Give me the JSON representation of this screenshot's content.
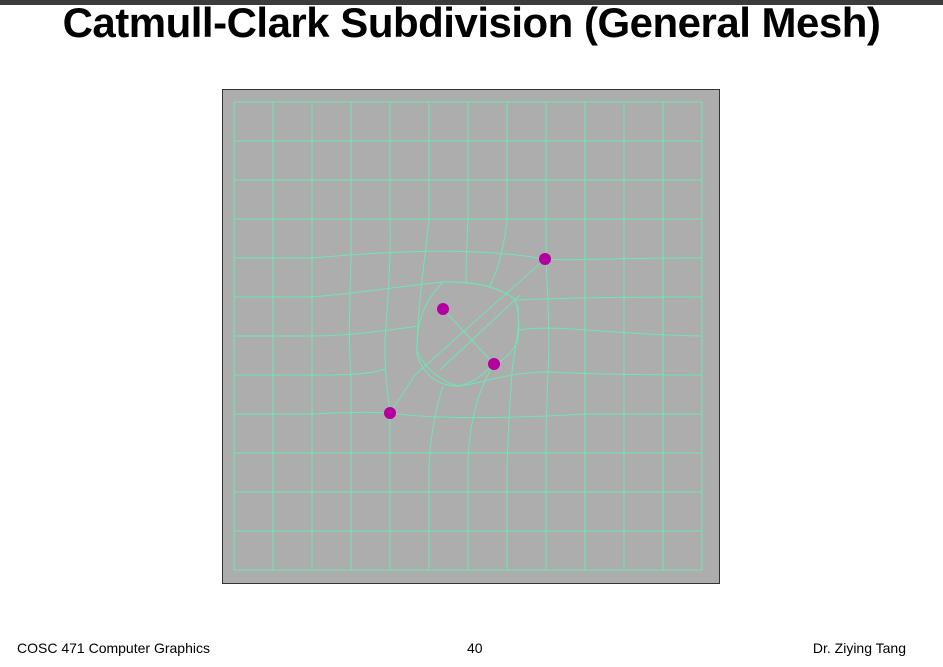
{
  "slide": {
    "title": "Catmull-Clark Subdivision (General Mesh)"
  },
  "footer": {
    "course": "COSC 471 Computer Graphics",
    "page_number": "40",
    "author": "Dr. Ziying Tang"
  },
  "figure": {
    "background_color": "#adadad",
    "line_color": "#6ee6b4",
    "point_color": "#b3009f",
    "extraordinary_points": 4
  }
}
